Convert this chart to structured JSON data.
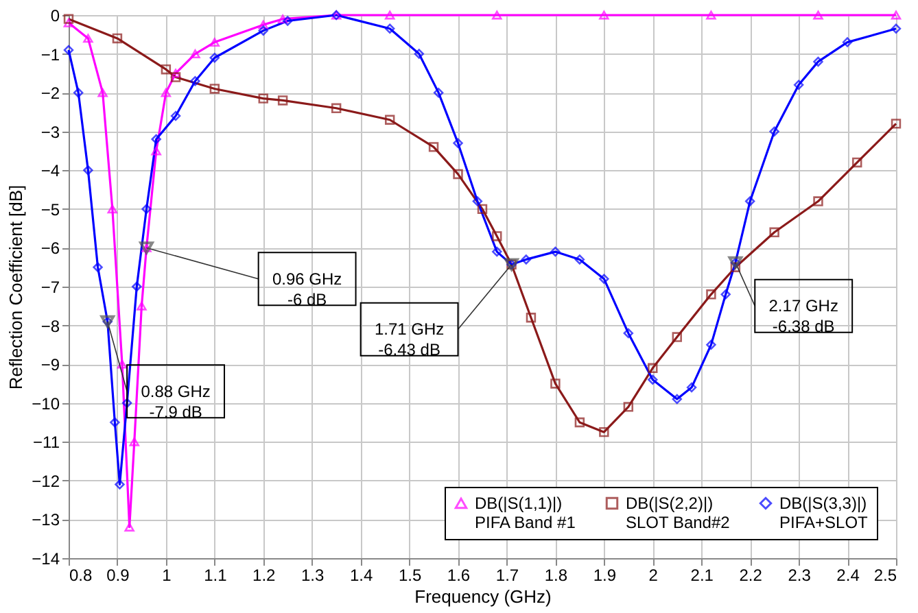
{
  "chart_data": {
    "type": "line",
    "xlabel": "Frequency (GHz)",
    "ylabel": "Reflection Coefficient [dB]",
    "xlim": [
      0.8,
      2.5
    ],
    "xticks": [
      0.8,
      0.9,
      1,
      1.1,
      1.2,
      1.3,
      1.4,
      1.5,
      1.6,
      1.7,
      1.8,
      1.9,
      2,
      2.1,
      2.2,
      2.3,
      2.4,
      2.5
    ],
    "ylim": [
      -14,
      0
    ],
    "yticks": [
      -14,
      -13,
      -12,
      -11,
      -10,
      -9,
      -8,
      -7,
      -6,
      -5,
      -4,
      -3,
      -2,
      -1,
      0
    ],
    "grid": true,
    "legend": "bottom right",
    "series": [
      {
        "name": "DB(|S(1,1)|)\nPIFA Band #1",
        "color": "#ff00ff",
        "marker": "triangle",
        "x": [
          0.8,
          0.84,
          0.87,
          0.89,
          0.91,
          0.925,
          0.935,
          0.95,
          0.96,
          0.98,
          1.0,
          1.02,
          1.06,
          1.1,
          1.2,
          1.24,
          1.35,
          1.46,
          1.68,
          1.9,
          2.12,
          2.34,
          2.5
        ],
        "values": [
          -0.2,
          -0.6,
          -2,
          -5,
          -9,
          -13.2,
          -11,
          -7.5,
          -6,
          -3.5,
          -2,
          -1.5,
          -1.0,
          -0.7,
          -0.25,
          -0.1,
          0,
          0,
          0,
          0,
          0,
          0,
          0
        ]
      },
      {
        "name": "DB(|S(2,2)|)\nSLOT Band#2",
        "color": "#8b1a1a",
        "marker": "square",
        "x": [
          0.8,
          0.9,
          1.0,
          1.02,
          1.1,
          1.2,
          1.24,
          1.35,
          1.46,
          1.55,
          1.6,
          1.65,
          1.68,
          1.71,
          1.75,
          1.8,
          1.85,
          1.9,
          1.95,
          2.0,
          2.05,
          2.12,
          2.17,
          2.25,
          2.34,
          2.42,
          2.5
        ],
        "values": [
          -0.1,
          -0.6,
          -1.4,
          -1.6,
          -1.9,
          -2.15,
          -2.2,
          -2.4,
          -2.7,
          -3.4,
          -4.1,
          -5,
          -5.7,
          -6.43,
          -7.8,
          -9.5,
          -10.5,
          -10.75,
          -10.1,
          -9.1,
          -8.3,
          -7.2,
          -6.5,
          -5.6,
          -4.8,
          -3.8,
          -2.8
        ]
      },
      {
        "name": "DB(|S(3,3)|)\nPIFA+SLOT",
        "color": "#0000ff",
        "marker": "diamond",
        "x": [
          0.8,
          0.82,
          0.84,
          0.86,
          0.88,
          0.895,
          0.905,
          0.92,
          0.94,
          0.96,
          0.98,
          1.02,
          1.06,
          1.1,
          1.2,
          1.25,
          1.35,
          1.46,
          1.52,
          1.56,
          1.6,
          1.64,
          1.68,
          1.71,
          1.74,
          1.8,
          1.85,
          1.9,
          1.95,
          2.0,
          2.05,
          2.08,
          2.12,
          2.15,
          2.17,
          2.2,
          2.25,
          2.3,
          2.34,
          2.4,
          2.5
        ],
        "values": [
          -0.9,
          -2,
          -4,
          -6.5,
          -7.9,
          -10.5,
          -12.1,
          -10,
          -7,
          -5,
          -3.2,
          -2.6,
          -1.7,
          -1.1,
          -0.4,
          -0.15,
          0,
          -0.35,
          -1,
          -2,
          -3.3,
          -4.8,
          -6.1,
          -6.43,
          -6.3,
          -6.1,
          -6.3,
          -6.8,
          -8.2,
          -9.4,
          -9.9,
          -9.6,
          -8.5,
          -7.2,
          -6.38,
          -4.8,
          -3,
          -1.8,
          -1.2,
          -0.7,
          -0.35
        ]
      }
    ],
    "annotations": [
      {
        "text": "0.88 GHz\n-7.9 dB",
        "x": 0.88,
        "y": -7.9
      },
      {
        "text": "0.96 GHz\n-6 dB",
        "x": 0.96,
        "y": -6
      },
      {
        "text": "1.71 GHz\n-6.43 dB",
        "x": 1.71,
        "y": -6.43
      },
      {
        "text": "2.17 GHz\n-6.38 dB",
        "x": 2.17,
        "y": -6.38
      }
    ]
  }
}
